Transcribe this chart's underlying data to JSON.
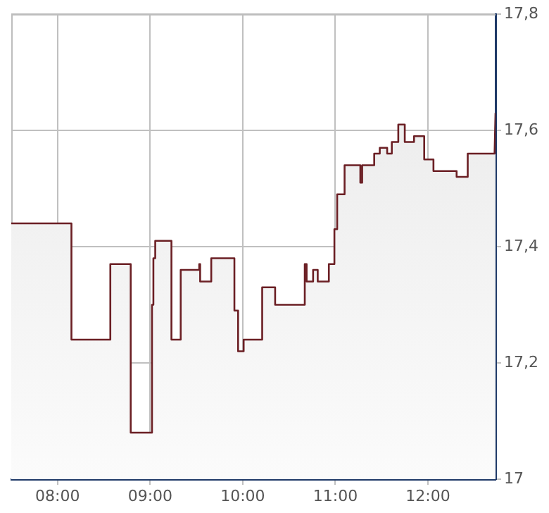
{
  "chart_data": {
    "type": "area",
    "x": [
      7.5,
      8.15,
      8.15,
      8.57,
      8.57,
      8.79,
      8.79,
      9.02,
      9.02,
      9.035,
      9.035,
      9.055,
      9.055,
      9.23,
      9.23,
      9.33,
      9.33,
      9.53,
      9.53,
      9.54,
      9.54,
      9.66,
      9.66,
      9.91,
      9.91,
      9.95,
      9.95,
      10.01,
      10.01,
      10.21,
      10.21,
      10.35,
      10.35,
      10.67,
      10.67,
      10.69,
      10.69,
      10.76,
      10.76,
      10.81,
      10.81,
      10.93,
      10.93,
      10.99,
      10.99,
      11.02,
      11.02,
      11.1,
      11.1,
      11.27,
      11.27,
      11.29,
      11.29,
      11.42,
      11.42,
      11.48,
      11.48,
      11.56,
      11.56,
      11.61,
      11.61,
      11.68,
      11.68,
      11.75,
      11.75,
      11.85,
      11.85,
      11.96,
      11.96,
      12.06,
      12.06,
      12.31,
      12.31,
      12.43,
      12.43,
      12.72,
      12.73
    ],
    "series": [
      {
        "color": "#6b1f24",
        "values": [
          17.44,
          17.44,
          17.24,
          17.24,
          17.37,
          17.37,
          17.08,
          17.08,
          17.3,
          17.3,
          17.38,
          17.38,
          17.41,
          17.41,
          17.24,
          17.24,
          17.36,
          17.36,
          17.37,
          17.37,
          17.34,
          17.34,
          17.38,
          17.38,
          17.29,
          17.29,
          17.22,
          17.22,
          17.24,
          17.24,
          17.33,
          17.33,
          17.3,
          17.3,
          17.37,
          17.37,
          17.34,
          17.34,
          17.36,
          17.36,
          17.34,
          17.34,
          17.37,
          17.37,
          17.43,
          17.43,
          17.49,
          17.49,
          17.54,
          17.54,
          17.51,
          17.51,
          17.54,
          17.54,
          17.56,
          17.56,
          17.57,
          17.57,
          17.56,
          17.56,
          17.58,
          17.58,
          17.61,
          17.61,
          17.58,
          17.58,
          17.59,
          17.59,
          17.55,
          17.55,
          17.53,
          17.53,
          17.52,
          17.52,
          17.56,
          17.56,
          17.63
        ]
      }
    ],
    "xlim": [
      7.5,
      12.73
    ],
    "xticks": [
      {
        "value": 8,
        "label": "08:00"
      },
      {
        "value": 9,
        "label": "09:00"
      },
      {
        "value": 10,
        "label": "10:00"
      },
      {
        "value": 11,
        "label": "11:00"
      },
      {
        "value": 12,
        "label": "12:00"
      }
    ],
    "ylim": [
      17,
      17.8
    ],
    "yticks": [
      {
        "value": 17,
        "label": "17"
      },
      {
        "value": 17.2,
        "label": "17,2"
      },
      {
        "value": 17.4,
        "label": "17,4"
      },
      {
        "value": 17.6,
        "label": "17,6"
      },
      {
        "value": 17.8,
        "label": "17,8"
      }
    ],
    "grid": true
  }
}
